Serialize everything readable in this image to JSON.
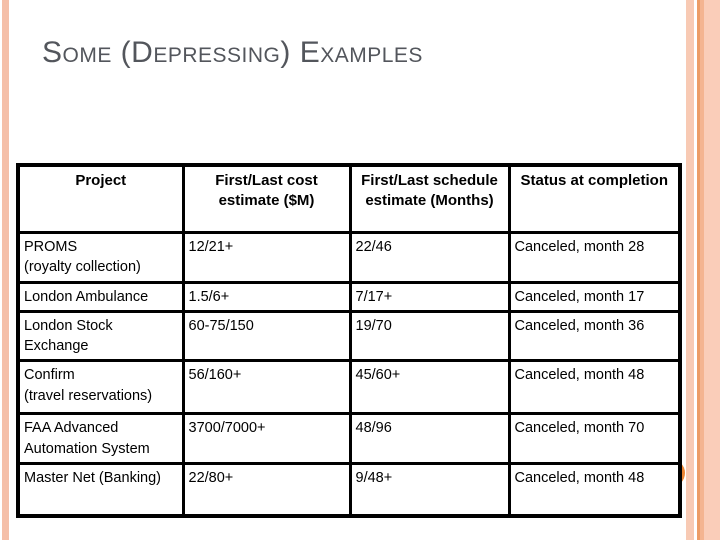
{
  "slide": {
    "title": "Some (Depressing) Examples"
  },
  "colors": {
    "title-color": "#53565C",
    "table-border": "#000000",
    "accent-circle": "#EB8533",
    "stripe-left": "#F5BFA8",
    "stripe-1": "#F8CAB4",
    "stripe-2": "#EC9C66",
    "stripe-3": "#F4B491",
    "stripe-4": "#FACDB9"
  },
  "table": {
    "headers": [
      "Project",
      "First/Last cost estimate ($M)",
      "First/Last schedule estimate (Months)",
      "Status at completion"
    ],
    "rows": [
      {
        "project": "PROMS\n(royalty collection)",
        "cost": "12/21+",
        "schedule": "22/46",
        "status": "Canceled, month 28"
      },
      {
        "project": "London Ambulance",
        "cost": "1.5/6+",
        "schedule": "7/17+",
        "status": "Canceled, month 17"
      },
      {
        "project": "London Stock\nExchange",
        "cost": "60-75/150",
        "schedule": "19/70",
        "status": "Canceled, month 36"
      },
      {
        "project": "Confirm\n(travel reservations)",
        "cost": "56/160+",
        "schedule": "45/60+",
        "status": "Canceled, month 48"
      },
      {
        "project": "FAA Advanced\nAutomation System",
        "cost": "3700/7000+",
        "schedule": "48/96",
        "status": "Canceled, month 70"
      },
      {
        "project": "Master Net (Banking)",
        "cost": "22/80+",
        "schedule": "9/48+",
        "status": "Canceled, month 48"
      }
    ]
  }
}
